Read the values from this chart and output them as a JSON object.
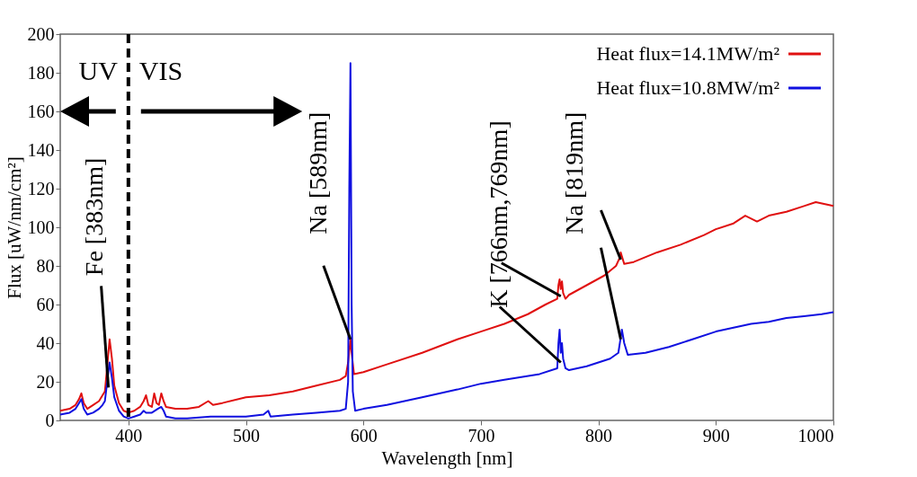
{
  "chart_data": {
    "type": "line",
    "xlabel": "Wavelength [nm]",
    "ylabel": "Flux [uW/nm/cm²]",
    "xlim": [
      342,
      1000
    ],
    "xticks": [
      400,
      500,
      600,
      700,
      800,
      900,
      1000
    ],
    "ylim": [
      0,
      200
    ],
    "yticks": [
      0,
      20,
      40,
      60,
      80,
      100,
      120,
      140,
      160,
      180,
      200
    ],
    "grid": false,
    "legend": "top right",
    "line_style": "solid",
    "marker": "none",
    "series": [
      {
        "name": "Heat flux=14.1MW/m²",
        "color": "#e01010",
        "x": [
          342,
          350,
          355,
          358,
          360,
          362,
          365,
          370,
          375,
          378,
          380,
          382,
          384,
          386,
          388,
          392,
          396,
          400,
          405,
          410,
          413,
          415,
          417,
          420,
          422,
          424,
          426,
          428,
          430,
          432,
          440,
          450,
          460,
          468,
          472,
          480,
          500,
          520,
          540,
          560,
          580,
          585,
          587,
          589,
          590,
          592,
          600,
          620,
          650,
          680,
          700,
          720,
          740,
          755,
          765,
          766,
          767,
          768,
          769,
          770,
          772,
          775,
          790,
          805,
          815,
          818,
          819,
          820,
          822,
          830,
          850,
          870,
          890,
          900,
          915,
          925,
          935,
          945,
          960,
          975,
          985,
          1000
        ],
        "values": [
          5,
          6,
          8,
          11,
          14,
          9,
          6,
          8,
          10,
          13,
          15,
          28,
          42,
          32,
          18,
          9,
          5,
          4,
          5,
          7,
          10,
          13,
          8,
          7,
          14,
          9,
          8,
          14,
          10,
          7,
          6,
          6,
          7,
          10,
          8,
          9,
          12,
          13,
          15,
          18,
          21,
          23,
          30,
          42,
          35,
          24,
          25,
          29,
          35,
          42,
          46,
          50,
          55,
          60,
          63,
          70,
          73,
          68,
          72,
          66,
          63,
          65,
          70,
          75,
          80,
          84,
          87,
          85,
          81,
          82,
          87,
          91,
          96,
          99,
          102,
          106,
          103,
          106,
          108,
          111,
          113,
          111
        ]
      },
      {
        "name": "Heat flux=10.8MW/m²",
        "color": "#1010e0",
        "x": [
          342,
          350,
          355,
          358,
          360,
          362,
          365,
          370,
          375,
          378,
          380,
          382,
          384,
          386,
          388,
          392,
          396,
          400,
          405,
          410,
          413,
          415,
          420,
          425,
          428,
          430,
          432,
          440,
          450,
          470,
          500,
          515,
          519,
          521,
          540,
          560,
          580,
          585,
          587,
          588,
          589,
          590,
          591,
          593,
          600,
          620,
          650,
          680,
          700,
          720,
          750,
          765,
          766,
          767,
          768,
          769,
          770,
          772,
          775,
          790,
          810,
          817,
          819,
          820,
          822,
          825,
          840,
          860,
          880,
          900,
          915,
          930,
          945,
          960,
          975,
          990,
          1000
        ],
        "values": [
          3,
          4,
          6,
          9,
          11,
          6,
          3,
          4,
          6,
          8,
          10,
          20,
          30,
          22,
          12,
          5,
          2,
          1,
          2,
          3,
          5,
          4,
          4,
          6,
          7,
          5,
          2,
          1,
          1,
          2,
          2,
          3,
          5,
          2,
          3,
          4,
          5,
          6,
          20,
          120,
          185,
          60,
          15,
          5,
          6,
          8,
          12,
          16,
          19,
          21,
          24,
          27,
          40,
          47,
          35,
          40,
          32,
          27,
          26,
          28,
          32,
          35,
          43,
          47,
          40,
          34,
          35,
          38,
          42,
          46,
          48,
          50,
          51,
          53,
          54,
          55,
          56
        ]
      }
    ],
    "ref_lines": [
      {
        "axis": "x",
        "value": 400,
        "color": "#000000",
        "line_style": "dashed"
      }
    ],
    "annotations": [
      "UV",
      "VIS",
      {
        "text": "Fe [383nm]",
        "x": 383,
        "y": 17
      },
      {
        "text": "Na [589nm]",
        "x": 589,
        "y": 42
      },
      {
        "text": "K [766nm,769nm]",
        "x": 768,
        "y": 30
      },
      {
        "text": "Na [819nm]",
        "x": 819,
        "y": 42
      }
    ]
  }
}
